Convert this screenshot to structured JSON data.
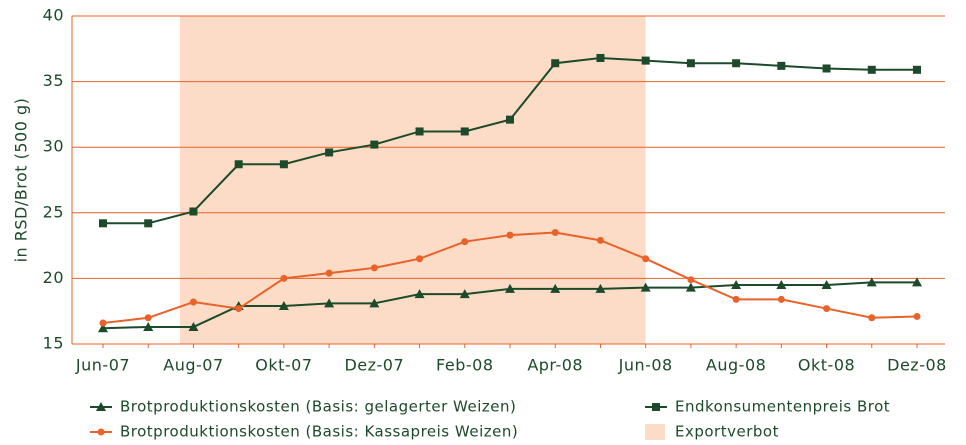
{
  "chart_data": {
    "type": "line",
    "y_label": "in RSD/Brot (500 g)",
    "categories": [
      "Jun-07",
      null,
      "Aug-07",
      null,
      "Okt-07",
      null,
      "Dez-07",
      null,
      "Feb-08",
      null,
      "Apr-08",
      null,
      "Jun-08",
      null,
      "Aug-08",
      null,
      "Okt-08",
      null,
      "Dez-08"
    ],
    "ylim": [
      15,
      40
    ],
    "yticks": [
      15,
      20,
      25,
      30,
      35,
      40
    ],
    "grid": true,
    "shaded_region": {
      "name": "Exportverbot",
      "color": "#fcdcc6",
      "from": 1.7,
      "to": 12
    },
    "series": [
      {
        "name": "Brotproduktionskosten (Basis: gelagerter Weizen)",
        "color": "#1d4a2a",
        "marker": "triangle",
        "values": [
          16.2,
          16.3,
          16.3,
          17.9,
          17.9,
          18.1,
          18.1,
          18.8,
          18.8,
          19.2,
          19.2,
          19.2,
          19.3,
          19.3,
          19.5,
          19.5,
          19.5,
          19.7,
          19.7
        ]
      },
      {
        "name": "Endkonsumentenpreis Brot",
        "color": "#1d4a2a",
        "marker": "square",
        "values": [
          24.2,
          24.2,
          25.1,
          28.7,
          28.7,
          29.6,
          30.2,
          31.2,
          31.2,
          32.1,
          36.4,
          36.8,
          36.6,
          36.4,
          36.4,
          36.2,
          36.0,
          35.9,
          35.9
        ]
      },
      {
        "name": "Brotproduktionskosten (Basis: Kassapreis Weizen)",
        "color": "#e8622a",
        "marker": "circle",
        "values": [
          16.6,
          17.0,
          18.2,
          17.7,
          20.0,
          20.4,
          20.8,
          21.5,
          22.8,
          23.3,
          23.5,
          22.9,
          21.5,
          19.9,
          18.4,
          18.4,
          17.7,
          17.0,
          17.1
        ]
      }
    ]
  }
}
